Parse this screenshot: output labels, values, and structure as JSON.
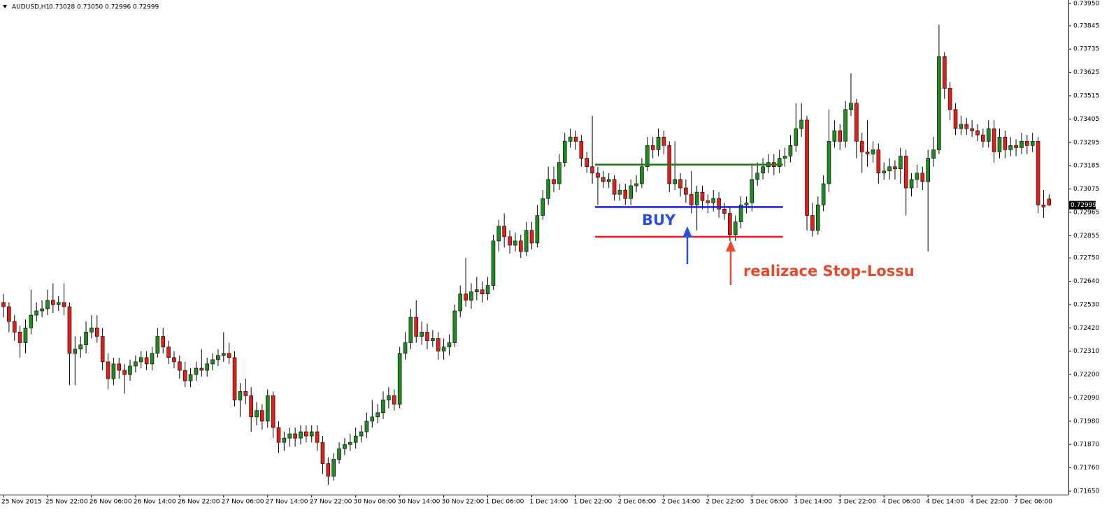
{
  "chart_data": {
    "type": "candlestick",
    "symbol": "AUDUSD,H1",
    "header_labels": [
      "0.73028",
      "0.73050",
      "0.72996",
      "0.72999"
    ],
    "up_color": "#1f8a1f",
    "down_color": "#e0201a",
    "ylim": [
      0.7165,
      0.7395
    ],
    "yticks": [
      {
        "value": 0.7395,
        "label": "0.73950"
      },
      0.73845,
      0.73735,
      0.73625,
      0.73515,
      0.73405,
      0.73295,
      0.73185,
      0.73075,
      0.72965,
      0.72855,
      {
        "value": 0.7275,
        "label": "0.72750"
      },
      {
        "value": 0.7264,
        "label": "0.72640"
      },
      {
        "value": 0.7253,
        "label": "0.72530"
      },
      {
        "value": 0.7242,
        "label": "0.72420"
      },
      {
        "value": 0.7231,
        "label": "0.72310"
      },
      {
        "value": 0.722,
        "label": "0.72200"
      },
      {
        "value": 0.7209,
        "label": "0.72090"
      },
      {
        "value": 0.7198,
        "label": "0.71980"
      },
      {
        "value": 0.7187,
        "label": "0.71870"
      },
      {
        "value": 0.7176,
        "label": "0.71760"
      },
      {
        "value": 0.7165,
        "label": "0.71650"
      }
    ],
    "categories": [
      "25 Nov 2015",
      null,
      null,
      null,
      null,
      null,
      null,
      null,
      "25 Nov 22:00",
      null,
      null,
      null,
      null,
      null,
      null,
      null,
      "26 Nov 06:00",
      null,
      null,
      null,
      null,
      null,
      null,
      null,
      "26 Nov 14:00",
      null,
      null,
      null,
      null,
      null,
      null,
      null,
      "26 Nov 22:00",
      null,
      null,
      null,
      null,
      null,
      null,
      null,
      "27 Nov 06:00",
      null,
      null,
      null,
      null,
      null,
      null,
      null,
      "27 Nov 14:00",
      null,
      null,
      null,
      null,
      null,
      null,
      null,
      "27 Nov 22:00",
      null,
      null,
      null,
      null,
      null,
      null,
      null,
      "30 Nov 06:00",
      null,
      null,
      null,
      null,
      null,
      null,
      null,
      "30 Nov 14:00",
      null,
      null,
      null,
      null,
      null,
      null,
      null,
      "30 Nov 22:00",
      null,
      null,
      null,
      null,
      null,
      null,
      null,
      "1 Dec 06:00",
      null,
      null,
      null,
      null,
      null,
      null,
      null,
      "1 Dec 14:00",
      null,
      null,
      null,
      null,
      null,
      null,
      null,
      "1 Dec 22:00",
      null,
      null,
      null,
      null,
      null,
      null,
      null,
      "2 Dec 06:00",
      null,
      null,
      null,
      null,
      null,
      null,
      null,
      "2 Dec 14:00",
      null,
      null,
      null,
      null,
      null,
      null,
      null,
      "2 Dec 22:00",
      null,
      null,
      null,
      null,
      null,
      null,
      null,
      "3 Dec 06:00",
      null,
      null,
      null,
      null,
      null,
      null,
      null,
      "3 Dec 14:00",
      null,
      null,
      null,
      null,
      null,
      null,
      null,
      "3 Dec 22:00",
      null,
      null,
      null,
      null,
      null,
      null,
      null,
      "4 Dec 06:00",
      null,
      null,
      null,
      null,
      null,
      null,
      null,
      "4 Dec 14:00",
      null,
      null,
      null,
      null,
      null,
      null,
      null,
      "4 Dec 22:00",
      null,
      null,
      null,
      null,
      null,
      null,
      null,
      "7 Dec 06:00",
      null,
      null,
      null,
      null,
      null,
      null
    ],
    "candles": [
      [
        0.7254,
        0.7258,
        0.7247,
        0.7252
      ],
      [
        0.7252,
        0.7254,
        0.724,
        0.7245
      ],
      [
        0.7245,
        0.7248,
        0.7236,
        0.724
      ],
      [
        0.724,
        0.7243,
        0.7228,
        0.7235
      ],
      [
        0.7235,
        0.7246,
        0.723,
        0.7242
      ],
      [
        0.7242,
        0.726,
        0.7239,
        0.7248
      ],
      [
        0.7248,
        0.7254,
        0.7245,
        0.725
      ],
      [
        0.725,
        0.7255,
        0.7247,
        0.7251
      ],
      [
        0.7251,
        0.726,
        0.7248,
        0.7255
      ],
      [
        0.7255,
        0.7263,
        0.7249,
        0.7253
      ],
      [
        0.7253,
        0.7257,
        0.725,
        0.7254
      ],
      [
        0.7254,
        0.7263,
        0.7248,
        0.7252
      ],
      [
        0.7252,
        0.7254,
        0.7215,
        0.723
      ],
      [
        0.723,
        0.7238,
        0.7215,
        0.7232
      ],
      [
        0.7232,
        0.7238,
        0.7228,
        0.7234
      ],
      [
        0.7234,
        0.7245,
        0.723,
        0.724
      ],
      [
        0.724,
        0.7248,
        0.7237,
        0.7242
      ],
      [
        0.7242,
        0.7248,
        0.7235,
        0.7238
      ],
      [
        0.7238,
        0.7242,
        0.7222,
        0.7226
      ],
      [
        0.7226,
        0.723,
        0.7213,
        0.7218
      ],
      [
        0.7218,
        0.7228,
        0.7215,
        0.7225
      ],
      [
        0.7225,
        0.7228,
        0.7218,
        0.7222
      ],
      [
        0.7222,
        0.7225,
        0.7211,
        0.722
      ],
      [
        0.722,
        0.7227,
        0.7217,
        0.7224
      ],
      [
        0.7224,
        0.7229,
        0.7221,
        0.7226
      ],
      [
        0.7226,
        0.7231,
        0.7223,
        0.7228
      ],
      [
        0.7228,
        0.7231,
        0.7222,
        0.7225
      ],
      [
        0.7225,
        0.7233,
        0.7222,
        0.723
      ],
      [
        0.723,
        0.7242,
        0.7228,
        0.7238
      ],
      [
        0.7238,
        0.7242,
        0.723,
        0.7233
      ],
      [
        0.7233,
        0.7236,
        0.7225,
        0.7228
      ],
      [
        0.7228,
        0.7231,
        0.7223,
        0.7226
      ],
      [
        0.7226,
        0.7229,
        0.7218,
        0.7222
      ],
      [
        0.7222,
        0.7226,
        0.7214,
        0.7217
      ],
      [
        0.7217,
        0.7223,
        0.7214,
        0.722
      ],
      [
        0.722,
        0.7226,
        0.7217,
        0.7223
      ],
      [
        0.7223,
        0.7232,
        0.7219,
        0.7222
      ],
      [
        0.7222,
        0.7228,
        0.7219,
        0.7225
      ],
      [
        0.7225,
        0.723,
        0.7222,
        0.7227
      ],
      [
        0.7227,
        0.7232,
        0.7224,
        0.7229
      ],
      [
        0.7229,
        0.724,
        0.7226,
        0.723
      ],
      [
        0.723,
        0.7235,
        0.7225,
        0.7228
      ],
      [
        0.7228,
        0.7231,
        0.7205,
        0.7208
      ],
      [
        0.7208,
        0.7216,
        0.72,
        0.7212
      ],
      [
        0.7212,
        0.7218,
        0.7206,
        0.721
      ],
      [
        0.721,
        0.7214,
        0.7193,
        0.72
      ],
      [
        0.72,
        0.7207,
        0.7196,
        0.7203
      ],
      [
        0.7203,
        0.7206,
        0.7194,
        0.7198
      ],
      [
        0.7198,
        0.7213,
        0.7195,
        0.721
      ],
      [
        0.721,
        0.7212,
        0.719,
        0.7195
      ],
      [
        0.7195,
        0.7198,
        0.7183,
        0.7188
      ],
      [
        0.7188,
        0.7193,
        0.7184,
        0.719
      ],
      [
        0.719,
        0.7195,
        0.7186,
        0.7192
      ],
      [
        0.7192,
        0.7195,
        0.7186,
        0.719
      ],
      [
        0.719,
        0.7196,
        0.7187,
        0.7193
      ],
      [
        0.7193,
        0.7196,
        0.7188,
        0.7191
      ],
      [
        0.7191,
        0.7196,
        0.7188,
        0.7193
      ],
      [
        0.7193,
        0.7196,
        0.7184,
        0.7188
      ],
      [
        0.7188,
        0.7191,
        0.7173,
        0.7178
      ],
      [
        0.7178,
        0.7181,
        0.7168,
        0.7172
      ],
      [
        0.7172,
        0.7183,
        0.717,
        0.718
      ],
      [
        0.718,
        0.7188,
        0.7178,
        0.7185
      ],
      [
        0.7185,
        0.719,
        0.7182,
        0.7187
      ],
      [
        0.7187,
        0.7192,
        0.7184,
        0.7188
      ],
      [
        0.7188,
        0.7195,
        0.7185,
        0.7191
      ],
      [
        0.7191,
        0.7196,
        0.7188,
        0.7193
      ],
      [
        0.7193,
        0.7202,
        0.719,
        0.7198
      ],
      [
        0.7198,
        0.7208,
        0.7195,
        0.72
      ],
      [
        0.72,
        0.7206,
        0.7197,
        0.7202
      ],
      [
        0.7202,
        0.7212,
        0.7199,
        0.7208
      ],
      [
        0.7208,
        0.7214,
        0.7204,
        0.721
      ],
      [
        0.721,
        0.7213,
        0.7203,
        0.7206
      ],
      [
        0.7206,
        0.7233,
        0.7204,
        0.723
      ],
      [
        0.723,
        0.724,
        0.7227,
        0.7235
      ],
      [
        0.7235,
        0.7251,
        0.7232,
        0.7247
      ],
      [
        0.7247,
        0.7255,
        0.7235,
        0.7238
      ],
      [
        0.7238,
        0.7245,
        0.7234,
        0.724
      ],
      [
        0.724,
        0.7244,
        0.7232,
        0.7236
      ],
      [
        0.7236,
        0.7241,
        0.7233,
        0.7237
      ],
      [
        0.7237,
        0.724,
        0.7227,
        0.7231
      ],
      [
        0.7231,
        0.7237,
        0.7227,
        0.7233
      ],
      [
        0.7233,
        0.7239,
        0.7229,
        0.7235
      ],
      [
        0.7235,
        0.7253,
        0.7233,
        0.725
      ],
      [
        0.725,
        0.7262,
        0.7247,
        0.7258
      ],
      [
        0.7258,
        0.7275,
        0.7252,
        0.7255
      ],
      [
        0.7255,
        0.7263,
        0.7251,
        0.7259
      ],
      [
        0.7259,
        0.7266,
        0.7255,
        0.726
      ],
      [
        0.726,
        0.7264,
        0.7254,
        0.7258
      ],
      [
        0.7258,
        0.7266,
        0.7255,
        0.7262
      ],
      [
        0.7262,
        0.7286,
        0.726,
        0.7283
      ],
      [
        0.7283,
        0.7293,
        0.7278,
        0.729
      ],
      [
        0.729,
        0.7296,
        0.728,
        0.7285
      ],
      [
        0.7285,
        0.7288,
        0.7277,
        0.7281
      ],
      [
        0.7281,
        0.7287,
        0.7278,
        0.7283
      ],
      [
        0.7283,
        0.7286,
        0.7275,
        0.7278
      ],
      [
        0.7278,
        0.7292,
        0.7276,
        0.7288
      ],
      [
        0.7288,
        0.7292,
        0.7279,
        0.7282
      ],
      [
        0.7282,
        0.73,
        0.728,
        0.7295
      ],
      [
        0.7295,
        0.7307,
        0.7293,
        0.7303
      ],
      [
        0.7303,
        0.7318,
        0.73,
        0.7312
      ],
      [
        0.7312,
        0.7318,
        0.7306,
        0.731
      ],
      [
        0.731,
        0.7324,
        0.7307,
        0.732
      ],
      [
        0.732,
        0.7334,
        0.7318,
        0.733
      ],
      [
        0.733,
        0.7336,
        0.7327,
        0.7332
      ],
      [
        0.7332,
        0.7335,
        0.7326,
        0.733
      ],
      [
        0.733,
        0.7333,
        0.7318,
        0.7322
      ],
      [
        0.7322,
        0.7325,
        0.7315,
        0.7318
      ],
      [
        0.7318,
        0.7342,
        0.731,
        0.7315
      ],
      [
        0.7315,
        0.7318,
        0.73,
        0.7313
      ],
      [
        0.7313,
        0.7316,
        0.7308,
        0.7311
      ],
      [
        0.7311,
        0.7315,
        0.7308,
        0.7312
      ],
      [
        0.7312,
        0.7314,
        0.7302,
        0.7305
      ],
      [
        0.7305,
        0.731,
        0.7302,
        0.7307
      ],
      [
        0.7307,
        0.731,
        0.73,
        0.7303
      ],
      [
        0.7303,
        0.7312,
        0.73,
        0.7309
      ],
      [
        0.7309,
        0.7314,
        0.7306,
        0.731
      ],
      [
        0.731,
        0.7322,
        0.7308,
        0.7318
      ],
      [
        0.7318,
        0.7332,
        0.7316,
        0.7328
      ],
      [
        0.7328,
        0.7332,
        0.7322,
        0.7326
      ],
      [
        0.7326,
        0.7336,
        0.7323,
        0.7332
      ],
      [
        0.7332,
        0.7335,
        0.7324,
        0.7328
      ],
      [
        0.7328,
        0.733,
        0.7306,
        0.731
      ],
      [
        0.731,
        0.733,
        0.7307,
        0.7312
      ],
      [
        0.7312,
        0.7315,
        0.7304,
        0.7308
      ],
      [
        0.7308,
        0.7312,
        0.7301,
        0.7305
      ],
      [
        0.7305,
        0.7316,
        0.7296,
        0.73
      ],
      [
        0.73,
        0.7309,
        0.7288,
        0.7306
      ],
      [
        0.7306,
        0.7309,
        0.7298,
        0.7302
      ],
      [
        0.7302,
        0.7305,
        0.7296,
        0.7301
      ],
      [
        0.7301,
        0.7307,
        0.7297,
        0.7303
      ],
      [
        0.7303,
        0.7306,
        0.7294,
        0.7298
      ],
      [
        0.7298,
        0.7301,
        0.7293,
        0.7296
      ],
      [
        0.7296,
        0.7299,
        0.7283,
        0.7286
      ],
      [
        0.7286,
        0.7295,
        0.7283,
        0.7292
      ],
      [
        0.7292,
        0.7304,
        0.7289,
        0.73
      ],
      [
        0.73,
        0.7304,
        0.7296,
        0.7301
      ],
      [
        0.7301,
        0.7319,
        0.7297,
        0.7312
      ],
      [
        0.7312,
        0.732,
        0.7309,
        0.7315
      ],
      [
        0.7315,
        0.7322,
        0.7312,
        0.7318
      ],
      [
        0.7318,
        0.7324,
        0.7315,
        0.732
      ],
      [
        0.732,
        0.7324,
        0.7314,
        0.7318
      ],
      [
        0.7318,
        0.7326,
        0.7315,
        0.7322
      ],
      [
        0.7322,
        0.7327,
        0.7318,
        0.7323
      ],
      [
        0.7323,
        0.7333,
        0.732,
        0.7328
      ],
      [
        0.7328,
        0.7348,
        0.7325,
        0.7336
      ],
      [
        0.7336,
        0.7348,
        0.7332,
        0.734
      ],
      [
        0.734,
        0.7342,
        0.7288,
        0.7295
      ],
      [
        0.7295,
        0.7301,
        0.7285,
        0.7288
      ],
      [
        0.7288,
        0.7304,
        0.7286,
        0.73
      ],
      [
        0.73,
        0.7314,
        0.7297,
        0.731
      ],
      [
        0.731,
        0.7345,
        0.7306,
        0.733
      ],
      [
        0.733,
        0.734,
        0.7327,
        0.7335
      ],
      [
        0.7335,
        0.7338,
        0.7326,
        0.733
      ],
      [
        0.733,
        0.7349,
        0.7327,
        0.7345
      ],
      [
        0.7345,
        0.7362,
        0.7342,
        0.7348
      ],
      [
        0.7348,
        0.735,
        0.7322,
        0.733
      ],
      [
        0.733,
        0.7334,
        0.7315,
        0.7325
      ],
      [
        0.7325,
        0.734,
        0.7318,
        0.7324
      ],
      [
        0.7324,
        0.733,
        0.732,
        0.7326
      ],
      [
        0.7326,
        0.7329,
        0.731,
        0.7315
      ],
      [
        0.7315,
        0.732,
        0.7312,
        0.7316
      ],
      [
        0.7316,
        0.7322,
        0.7312,
        0.7318
      ],
      [
        0.7318,
        0.7321,
        0.7312,
        0.7317
      ],
      [
        0.7317,
        0.7327,
        0.731,
        0.7323
      ],
      [
        0.7323,
        0.7326,
        0.7295,
        0.7308
      ],
      [
        0.7308,
        0.7315,
        0.7304,
        0.7312
      ],
      [
        0.7312,
        0.7319,
        0.7308,
        0.7315
      ],
      [
        0.7315,
        0.7318,
        0.7307,
        0.7311
      ],
      [
        0.7311,
        0.7326,
        0.7278,
        0.7322
      ],
      [
        0.7322,
        0.7332,
        0.7318,
        0.7326
      ],
      [
        0.7326,
        0.7385,
        0.7324,
        0.737
      ],
      [
        0.737,
        0.7372,
        0.735,
        0.7355
      ],
      [
        0.7355,
        0.7358,
        0.734,
        0.7345
      ],
      [
        0.7345,
        0.7348,
        0.7333,
        0.7336
      ],
      [
        0.7336,
        0.7342,
        0.7333,
        0.7338
      ],
      [
        0.7338,
        0.7341,
        0.7333,
        0.7336
      ],
      [
        0.7336,
        0.734,
        0.7332,
        0.7335
      ],
      [
        0.7335,
        0.7338,
        0.733,
        0.7333
      ],
      [
        0.7333,
        0.7336,
        0.7327,
        0.733
      ],
      [
        0.733,
        0.734,
        0.7327,
        0.7336
      ],
      [
        0.7336,
        0.734,
        0.732,
        0.7325
      ],
      [
        0.7325,
        0.7336,
        0.7322,
        0.7332
      ],
      [
        0.7332,
        0.7335,
        0.7322,
        0.7326
      ],
      [
        0.7326,
        0.7332,
        0.7323,
        0.7328
      ],
      [
        0.7328,
        0.7331,
        0.7323,
        0.7327
      ],
      [
        0.7327,
        0.7334,
        0.7324,
        0.733
      ],
      [
        0.733,
        0.7333,
        0.7324,
        0.7328
      ],
      [
        0.7328,
        0.7334,
        0.7325,
        0.733
      ],
      [
        0.733,
        0.7332,
        0.7296,
        0.73
      ],
      [
        0.73,
        0.7307,
        0.7294,
        0.7299
      ],
      [
        0.73028,
        0.7305,
        0.72996,
        0.72999
      ]
    ],
    "hlines": [
      {
        "value": 0.7319,
        "color": "#1a7a1a",
        "start": 108,
        "end": 141
      },
      {
        "value": 0.7299,
        "color": "#1a1ae6",
        "start": 108,
        "end": 141
      },
      {
        "value": 0.7285,
        "color": "#e61a1a",
        "start": 108,
        "end": 141
      }
    ],
    "annotations": [
      {
        "text": "BUY",
        "color": "#2a4fe0"
      },
      {
        "text": "realizace Stop-Lossu",
        "color": "#e8492a"
      }
    ]
  }
}
